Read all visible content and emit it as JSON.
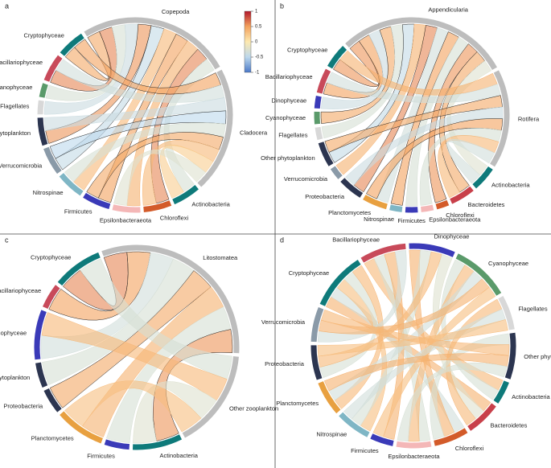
{
  "chart_data": [
    {
      "type": "chord",
      "label": "a",
      "clim": [
        -1,
        1
      ],
      "cticks": [
        -1,
        -0.5,
        0,
        0.5,
        1
      ],
      "colors": [
        "#4a78c8",
        "#bcd8ec",
        "#fde9b0",
        "#f3a25e",
        "#b2182b"
      ],
      "nodes": [
        {
          "name": "Copepoda",
          "color": "#bdbdbd"
        },
        {
          "name": "Cladocera",
          "color": "#bdbdbd"
        },
        {
          "name": "Actinobacteria",
          "color": "#0e7a7a"
        },
        {
          "name": "Chloroflexi",
          "color": "#d35b2a"
        },
        {
          "name": "Epsilonbacteraeota",
          "color": "#f4b7b7"
        },
        {
          "name": "Firmicutes",
          "color": "#3a3ab8"
        },
        {
          "name": "Nitrospinae",
          "color": "#7fb6c5"
        },
        {
          "name": "Verrucomicrobia",
          "color": "#8a9aa8"
        },
        {
          "name": "Other phytoplankton",
          "color": "#2c3550"
        },
        {
          "name": "Flagellates",
          "color": "#d8d8d8"
        },
        {
          "name": "Cyanophyceae",
          "color": "#5a9a6a"
        },
        {
          "name": "Bacillariophyceae",
          "color": "#c84a5a"
        },
        {
          "name": "Cryptophyceae",
          "color": "#0e7a7a"
        }
      ],
      "links": [
        {
          "source": "Copepoda",
          "target": "Cryptophyceae",
          "value": 0.45
        },
        {
          "source": "Copepoda",
          "target": "Bacillariophyceae",
          "value": 0.6
        },
        {
          "source": "Copepoda",
          "target": "Cyanophyceae",
          "value": -0.3
        },
        {
          "source": "Copepoda",
          "target": "Flagellates",
          "value": -0.4
        },
        {
          "source": "Copepoda",
          "target": "Other phytoplankton",
          "value": 0.55
        },
        {
          "source": "Copepoda",
          "target": "Verrucomicrobia",
          "value": -0.45
        },
        {
          "source": "Copepoda",
          "target": "Nitrospinae",
          "value": 0.35
        },
        {
          "source": "Copepoda",
          "target": "Firmicutes",
          "value": 0.5
        },
        {
          "source": "Copepoda",
          "target": "Epsilonbacteraeota",
          "value": 0.4
        },
        {
          "source": "Copepoda",
          "target": "Chloroflexi",
          "value": 0.6
        },
        {
          "source": "Copepoda",
          "target": "Actinobacteria",
          "value": -0.3
        },
        {
          "source": "Cladocera",
          "target": "Cryptophyceae",
          "value": 0.5
        },
        {
          "source": "Cladocera",
          "target": "Bacillariophyceae",
          "value": -0.35
        },
        {
          "source": "Cladocera",
          "target": "Other phytoplankton",
          "value": -0.4
        },
        {
          "source": "Cladocera",
          "target": "Verrucomicrobia",
          "value": -0.5
        },
        {
          "source": "Cladocera",
          "target": "Nitrospinae",
          "value": -0.3
        },
        {
          "source": "Cladocera",
          "target": "Firmicutes",
          "value": 0.45
        },
        {
          "source": "Cladocera",
          "target": "Chloroflexi",
          "value": 0.35
        },
        {
          "source": "Cladocera",
          "target": "Actinobacteria",
          "value": 0.2
        },
        {
          "source": "Cladocera",
          "target": "Epsilonbacteraeota",
          "value": -0.25
        }
      ]
    },
    {
      "type": "chord",
      "label": "b",
      "nodes": [
        {
          "name": "Appendicularia",
          "color": "#bdbdbd"
        },
        {
          "name": "Rotifera",
          "color": "#bdbdbd"
        },
        {
          "name": "Actinobacteria",
          "color": "#0e7a7a"
        },
        {
          "name": "Bacteroidetes",
          "color": "#c8404a"
        },
        {
          "name": "Chloroflexi",
          "color": "#d35b2a"
        },
        {
          "name": "Epsilonbacteraeota",
          "color": "#f4b7b7"
        },
        {
          "name": "Firmicutes",
          "color": "#3a3ab8"
        },
        {
          "name": "Nitrospinae",
          "color": "#7fb6c5"
        },
        {
          "name": "Planctomycetes",
          "color": "#e8a040"
        },
        {
          "name": "Proteobacteria",
          "color": "#2c3550"
        },
        {
          "name": "Verrucomicrobia",
          "color": "#8a9aa8"
        },
        {
          "name": "Other phytoplankton",
          "color": "#2c3550"
        },
        {
          "name": "Flagellates",
          "color": "#d8d8d8"
        },
        {
          "name": "Cyanophyceae",
          "color": "#5a9a6a"
        },
        {
          "name": "Dinophyceae",
          "color": "#3a3ab8"
        },
        {
          "name": "Bacillariophyceae",
          "color": "#c84a5a"
        },
        {
          "name": "Cryptophyceae",
          "color": "#0e7a7a"
        }
      ],
      "links": [
        {
          "source": "Appendicularia",
          "target": "Cryptophyceae",
          "value": 0.55
        },
        {
          "source": "Appendicularia",
          "target": "Bacillariophyceae",
          "value": 0.5
        },
        {
          "source": "Appendicularia",
          "target": "Dinophyceae",
          "value": -0.4
        },
        {
          "source": "Appendicularia",
          "target": "Cyanophyceae",
          "value": 0.45
        },
        {
          "source": "Appendicularia",
          "target": "Flagellates",
          "value": -0.3
        },
        {
          "source": "Appendicularia",
          "target": "Other phytoplankton",
          "value": -0.45
        },
        {
          "source": "Appendicularia",
          "target": "Verrucomicrobia",
          "value": 0.4
        },
        {
          "source": "Appendicularia",
          "target": "Proteobacteria",
          "value": 0.6
        },
        {
          "source": "Appendicularia",
          "target": "Planctomycetes",
          "value": -0.35
        },
        {
          "source": "Appendicularia",
          "target": "Nitrospinae",
          "value": 0.5
        },
        {
          "source": "Appendicularia",
          "target": "Firmicutes",
          "value": -0.3
        },
        {
          "source": "Appendicularia",
          "target": "Chloroflexi",
          "value": 0.55
        },
        {
          "source": "Appendicularia",
          "target": "Bacteroidetes",
          "value": 0.45
        },
        {
          "source": "Appendicularia",
          "target": "Actinobacteria",
          "value": -0.25
        },
        {
          "source": "Rotifera",
          "target": "Cryptophyceae",
          "value": 0.4
        },
        {
          "source": "Rotifera",
          "target": "Bacillariophyceae",
          "value": -0.35
        },
        {
          "source": "Rotifera",
          "target": "Other phytoplankton",
          "value": 0.45
        },
        {
          "source": "Rotifera",
          "target": "Proteobacteria",
          "value": -0.4
        },
        {
          "source": "Rotifera",
          "target": "Planctomycetes",
          "value": 0.5
        },
        {
          "source": "Rotifera",
          "target": "Epsilonbacteraeota",
          "value": -0.3
        },
        {
          "source": "Rotifera",
          "target": "Bacteroidetes",
          "value": 0.35
        },
        {
          "source": "Rotifera",
          "target": "Actinobacteria",
          "value": -0.35
        }
      ]
    },
    {
      "type": "chord",
      "label": "c",
      "nodes": [
        {
          "name": "Litostomatea",
          "color": "#bdbdbd"
        },
        {
          "name": "Other zooplankton",
          "color": "#bdbdbd"
        },
        {
          "name": "Actinobacteria",
          "color": "#0e7a7a"
        },
        {
          "name": "Firmicutes",
          "color": "#3a3ab8"
        },
        {
          "name": "Planctomycetes",
          "color": "#e8a040"
        },
        {
          "name": "Proteobacteria",
          "color": "#2c3550"
        },
        {
          "name": "Other phytoplankton",
          "color": "#2c3550"
        },
        {
          "name": "Dinophyceae",
          "color": "#3a3ab8"
        },
        {
          "name": "Bacillariophyceae",
          "color": "#c84a5a"
        },
        {
          "name": "Cryptophyceae",
          "color": "#0e7a7a"
        }
      ],
      "links": [
        {
          "source": "Litostomatea",
          "target": "Cryptophyceae",
          "value": 0.6
        },
        {
          "source": "Litostomatea",
          "target": "Bacillariophyceae",
          "value": 0.5
        },
        {
          "source": "Litostomatea",
          "target": "Dinophyceae",
          "value": -0.35
        },
        {
          "source": "Litostomatea",
          "target": "Other phytoplankton",
          "value": -0.3
        },
        {
          "source": "Litostomatea",
          "target": "Proteobacteria",
          "value": 0.45
        },
        {
          "source": "Litostomatea",
          "target": "Planctomycetes",
          "value": 0.4
        },
        {
          "source": "Litostomatea",
          "target": "Firmicutes",
          "value": -0.3
        },
        {
          "source": "Litostomatea",
          "target": "Actinobacteria",
          "value": 0.55
        },
        {
          "source": "Other zooplankton",
          "target": "Cryptophyceae",
          "value": -0.3
        },
        {
          "source": "Other zooplankton",
          "target": "Dinophyceae",
          "value": 0.35
        },
        {
          "source": "Other zooplankton",
          "target": "Actinobacteria",
          "value": -0.25
        },
        {
          "source": "Other zooplankton",
          "target": "Planctomycetes",
          "value": 0.3
        }
      ]
    },
    {
      "type": "chord",
      "label": "d",
      "nodes": [
        {
          "name": "Cryptophyceae",
          "color": "#0e7a7a"
        },
        {
          "name": "Bacillariophyceae",
          "color": "#c84a5a"
        },
        {
          "name": "Dinophyceae",
          "color": "#3a3ab8"
        },
        {
          "name": "Cyanophyceae",
          "color": "#5a9a6a"
        },
        {
          "name": "Flagellates",
          "color": "#d8d8d8"
        },
        {
          "name": "Other phytoplankton",
          "color": "#2c3550"
        },
        {
          "name": "Actinobacteria",
          "color": "#0e7a7a"
        },
        {
          "name": "Bacteroidetes",
          "color": "#c8404a"
        },
        {
          "name": "Chloroflexi",
          "color": "#d35b2a"
        },
        {
          "name": "Epsilonbacteraeota",
          "color": "#f4b7b7"
        },
        {
          "name": "Firmicutes",
          "color": "#3a3ab8"
        },
        {
          "name": "Nitrospinae",
          "color": "#7fb6c5"
        },
        {
          "name": "Planctomycetes",
          "color": "#e8a040"
        },
        {
          "name": "Proteobacteria",
          "color": "#2c3550"
        },
        {
          "name": "Verrucomicrobia",
          "color": "#8a9aa8"
        }
      ],
      "links": [
        {
          "source": "Cryptophyceae",
          "target": "Bacteroidetes",
          "value": 0.4
        },
        {
          "source": "Cryptophyceae",
          "target": "Chloroflexi",
          "value": -0.35
        },
        {
          "source": "Cryptophyceae",
          "target": "Nitrospinae",
          "value": 0.3
        },
        {
          "source": "Cryptophyceae",
          "target": "Proteobacteria",
          "value": -0.3
        },
        {
          "source": "Cryptophyceae",
          "target": "Planctomycetes",
          "value": 0.35
        },
        {
          "source": "Bacillariophyceae",
          "target": "Actinobacteria",
          "value": 0.35
        },
        {
          "source": "Bacillariophyceae",
          "target": "Epsilonbacteraeota",
          "value": -0.3
        },
        {
          "source": "Bacillariophyceae",
          "target": "Firmicutes",
          "value": 0.4
        },
        {
          "source": "Bacillariophyceae",
          "target": "Verrucomicrobia",
          "value": -0.35
        },
        {
          "source": "Dinophyceae",
          "target": "Chloroflexi",
          "value": 0.4
        },
        {
          "source": "Dinophyceae",
          "target": "Nitrospinae",
          "value": -0.3
        },
        {
          "source": "Dinophyceae",
          "target": "Proteobacteria",
          "value": 0.35
        },
        {
          "source": "Dinophyceae",
          "target": "Bacteroidetes",
          "value": -0.25
        },
        {
          "source": "Cyanophyceae",
          "target": "Actinobacteria",
          "value": -0.3
        },
        {
          "source": "Cyanophyceae",
          "target": "Epsilonbacteraeota",
          "value": 0.35
        },
        {
          "source": "Cyanophyceae",
          "target": "Planctomycetes",
          "value": -0.35
        },
        {
          "source": "Cyanophyceae",
          "target": "Verrucomicrobia",
          "value": 0.4
        },
        {
          "source": "Cyanophyceae",
          "target": "Firmicutes",
          "value": 0.3
        },
        {
          "source": "Flagellates",
          "target": "Bacteroidetes",
          "value": 0.35
        },
        {
          "source": "Flagellates",
          "target": "Nitrospinae",
          "value": -0.35
        },
        {
          "source": "Flagellates",
          "target": "Proteobacteria",
          "value": 0.3
        },
        {
          "source": "Other phytoplankton",
          "target": "Chloroflexi",
          "value": -0.3
        },
        {
          "source": "Other phytoplankton",
          "target": "Verrucomicrobia",
          "value": 0.35
        },
        {
          "source": "Other phytoplankton",
          "target": "Planctomycetes",
          "value": 0.4
        },
        {
          "source": "Other phytoplankton",
          "target": "Epsilonbacteraeota",
          "value": -0.3
        }
      ]
    }
  ]
}
